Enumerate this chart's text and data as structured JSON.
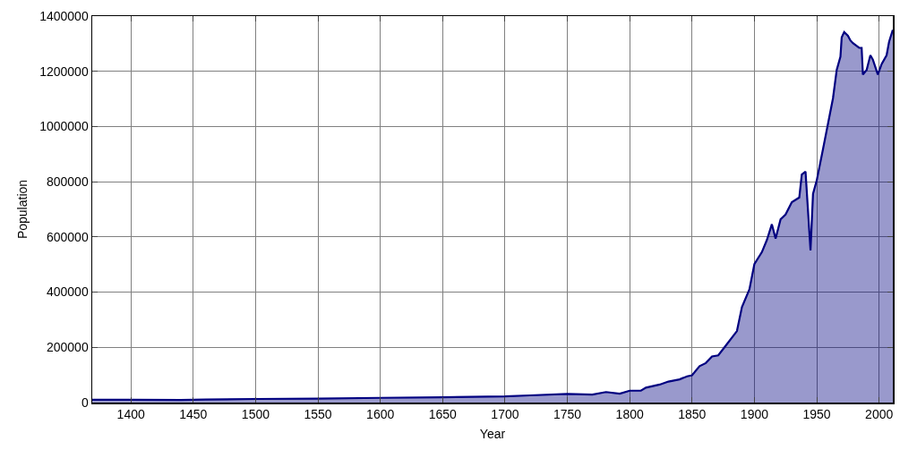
{
  "chart_data": {
    "type": "area",
    "xlabel": "Year",
    "ylabel": "Population",
    "x": [
      1369,
      1400,
      1440,
      1460,
      1500,
      1550,
      1600,
      1650,
      1700,
      1720,
      1750,
      1770,
      1781,
      1792,
      1800,
      1809,
      1813,
      1824,
      1831,
      1840,
      1846,
      1850,
      1856,
      1861,
      1866,
      1871,
      1876,
      1886,
      1890,
      1896,
      1900,
      1906,
      1910,
      1914,
      1917,
      1921,
      1925,
      1930,
      1936,
      1938,
      1941,
      1945,
      1947,
      1950,
      1955,
      1963,
      1966,
      1969,
      1970,
      1972,
      1975,
      1977,
      1979,
      1984,
      1986,
      1987,
      1990,
      1993,
      1995,
      1999,
      2002,
      2006,
      2008,
      2011
    ],
    "series": [
      {
        "color": "#000080",
        "values": [
          10000,
          10000,
          9000,
          11000,
          13000,
          14000,
          17000,
          19000,
          22000,
          26000,
          31000,
          29000,
          38000,
          32000,
          43000,
          43000,
          54000,
          65000,
          76000,
          84000,
          95000,
          99000,
          132000,
          143000,
          167000,
          171000,
          200000,
          259000,
          346000,
          410000,
          502000,
          545000,
          589000,
          646000,
          594000,
          664000,
          681000,
          726000,
          743000,
          826000,
          837000,
          551000,
          756000,
          805000,
          918000,
          1102000,
          1205000,
          1253000,
          1323000,
          1342000,
          1329000,
          1312000,
          1302000,
          1285000,
          1285000,
          1188000,
          1205000,
          1258000,
          1242000,
          1188000,
          1226000,
          1258000,
          1307000,
          1350000
        ]
      }
    ],
    "xlim": [
      1369,
      2011
    ],
    "xticks": [
      1400,
      1450,
      1500,
      1550,
      1600,
      1650,
      1700,
      1750,
      1800,
      1850,
      1900,
      1950,
      2000
    ],
    "ylim": [
      0,
      1400000
    ],
    "yticks": [
      0,
      200000,
      400000,
      600000,
      800000,
      1000000,
      1200000,
      1400000
    ],
    "grid": true,
    "marker": "none",
    "line_style": "solid"
  }
}
